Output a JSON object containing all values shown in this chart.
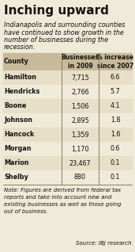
{
  "title": "Inching upward",
  "subtitle": "Indianapolis and surrounding counties have continued to show growth in the number of businesses during the recession.",
  "col_headers": [
    "County",
    "Businesses\nin 2009",
    "% increase\nsince 2007"
  ],
  "rows": [
    [
      "Hamilton",
      "7,715",
      "6.6"
    ],
    [
      "Hendricks",
      "2,766",
      "5.7"
    ],
    [
      "Boone",
      "1,506",
      "4.1"
    ],
    [
      "Johnson",
      "2,895",
      "1.8"
    ],
    [
      "Hancock",
      "1,359",
      "1.6"
    ],
    [
      "Morgan",
      "1,170",
      "0.6"
    ],
    [
      "Marion",
      "23,467",
      "0.1"
    ],
    [
      "Shelby",
      "880",
      "0.1"
    ]
  ],
  "note": "Note: Figures are derived from federal tax\nreports and take into account new and\nexisting businesses as well as those going\nout of business.",
  "source": "Source: IBJ research",
  "bg_color": "#f0ead8",
  "header_bg": "#c8b99a",
  "row_bg_odd": "#e8dfc8",
  "row_bg_even": "#f0ead8",
  "divider_color": "#8a7a60",
  "title_color": "#111111",
  "text_color": "#111111"
}
